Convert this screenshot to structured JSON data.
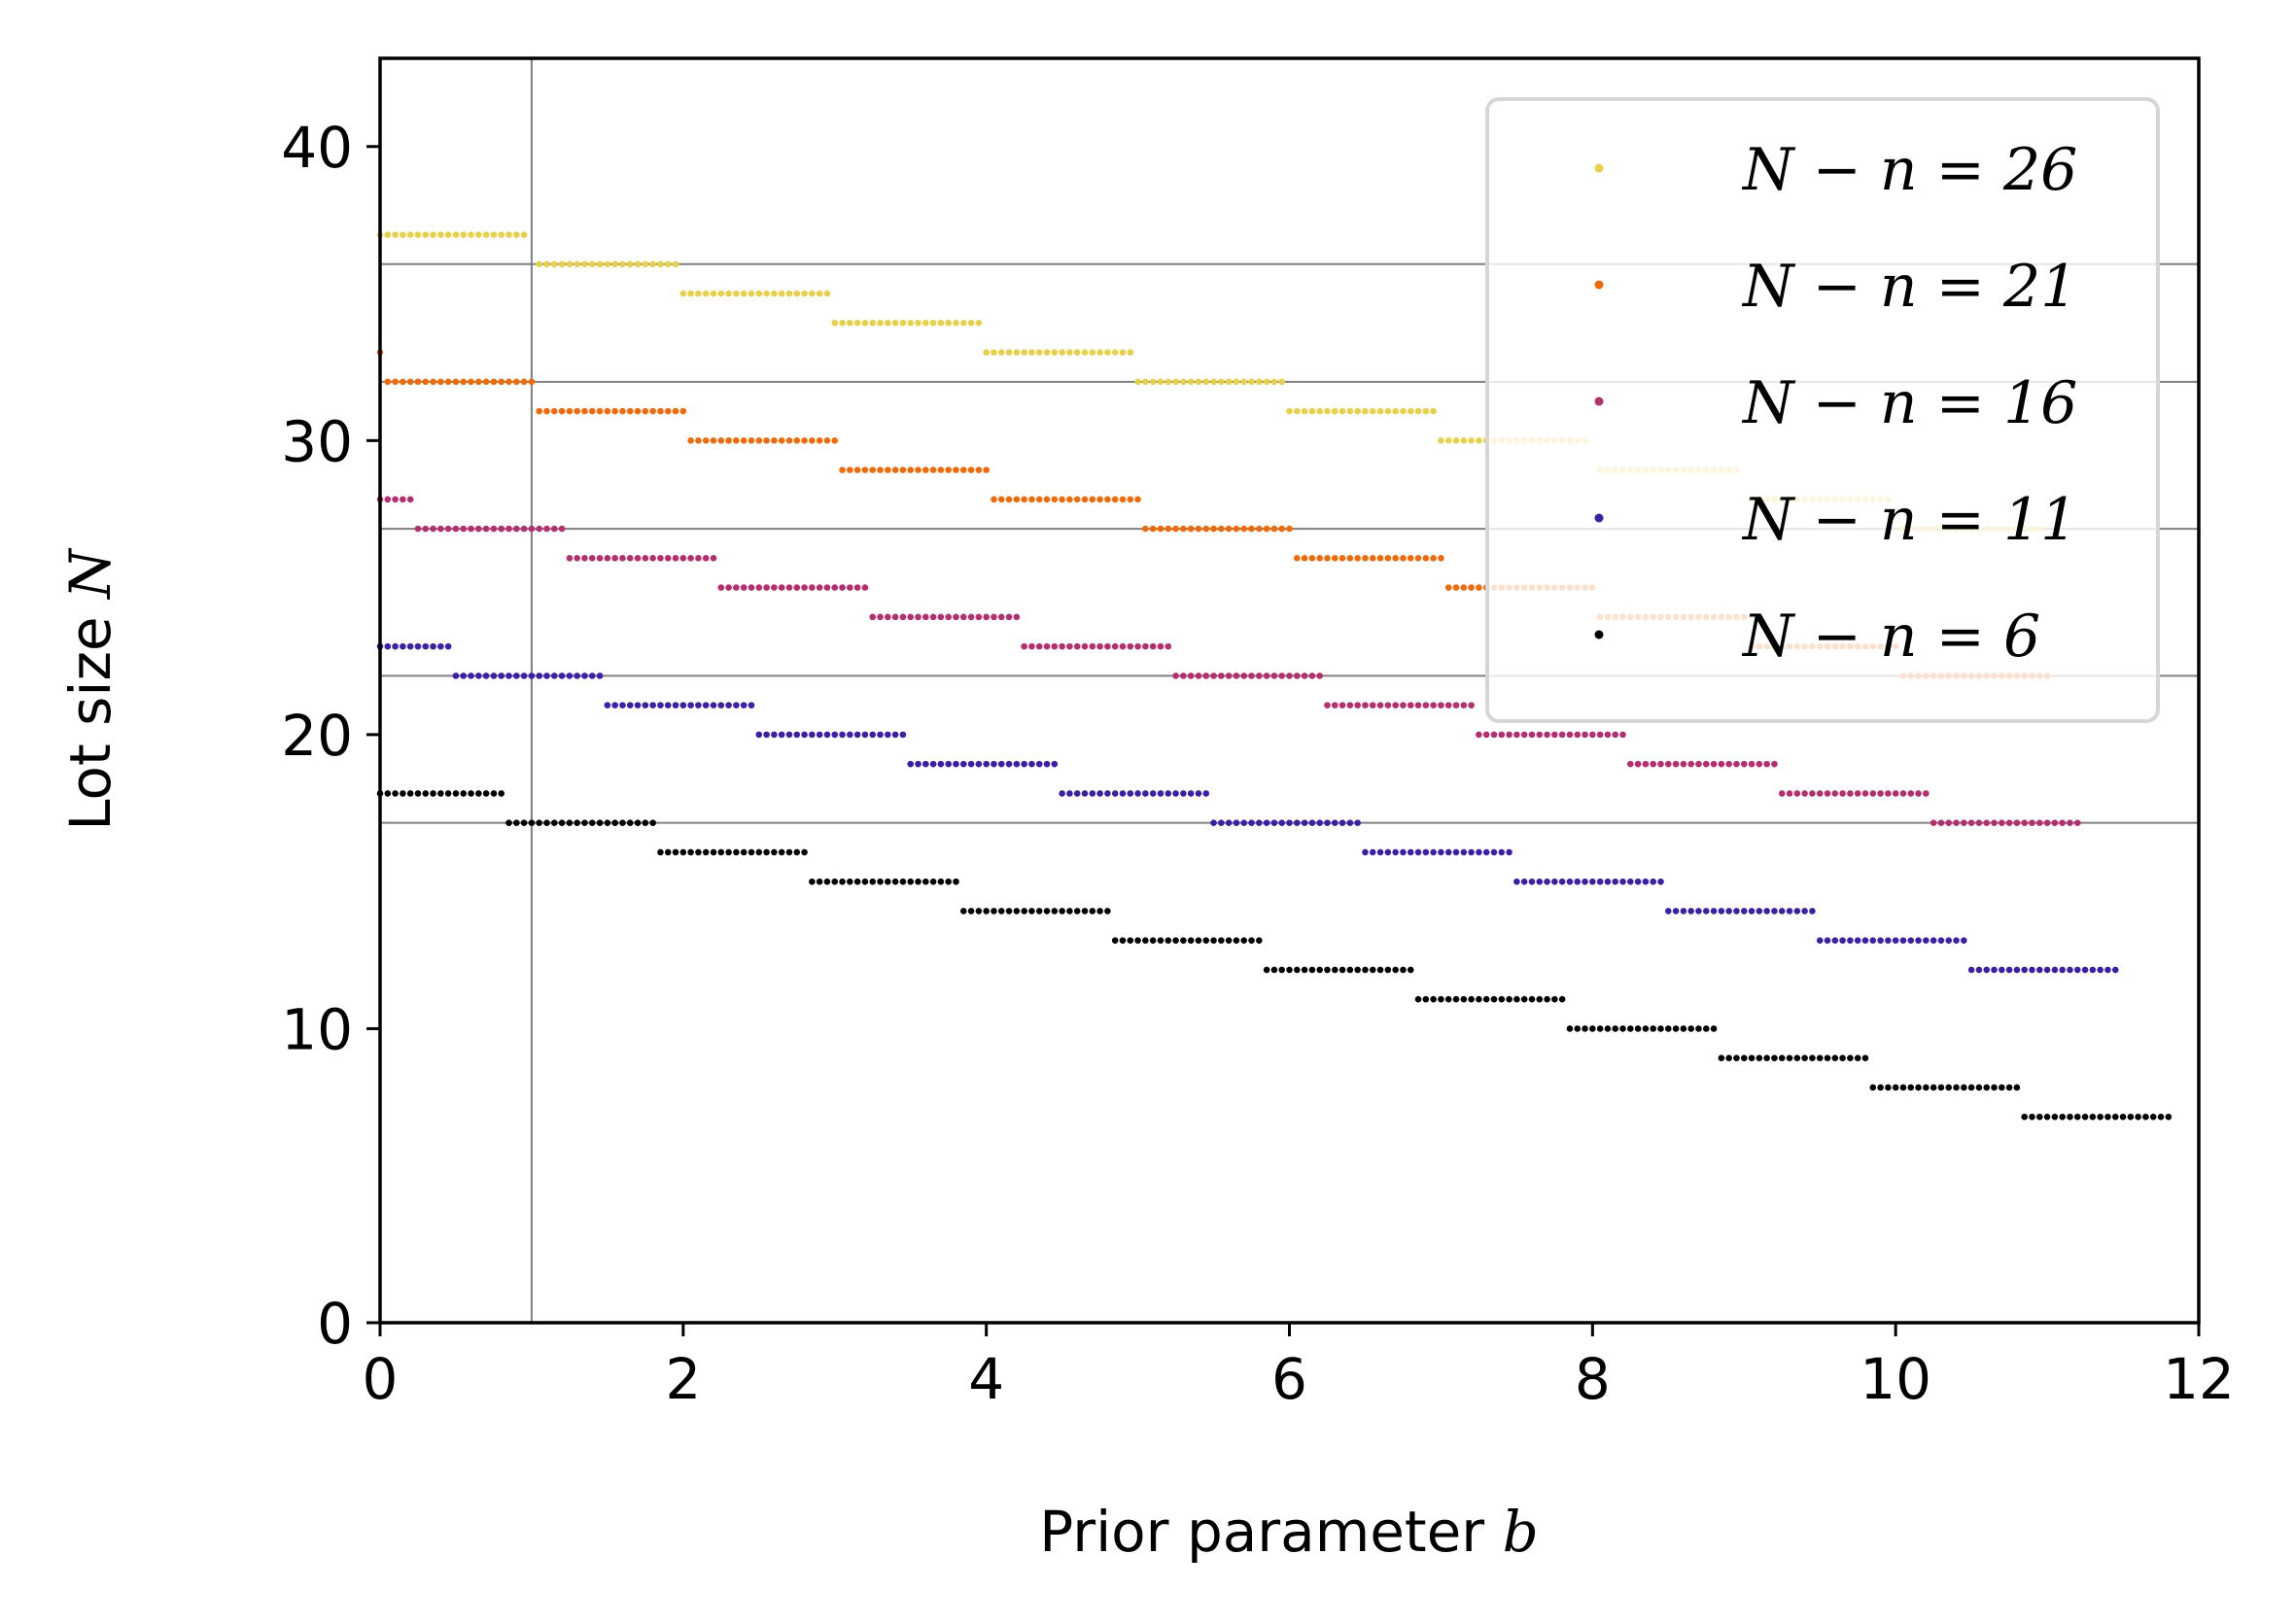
{
  "chart_data": {
    "type": "scatter",
    "title": "",
    "xlabel": {
      "text": "Prior parameter ",
      "math": "b"
    },
    "ylabel": {
      "text": "Lot size ",
      "math": "N"
    },
    "xlim": [
      0,
      12
    ],
    "ylim": [
      0,
      43
    ],
    "xticks": [
      "0",
      "2",
      "4",
      "6",
      "8",
      "10",
      "12"
    ],
    "yticks": [
      "0",
      "10",
      "20",
      "30",
      "40"
    ],
    "grid": {
      "vertical_lines": [
        1
      ],
      "horizontal_lines": [
        17,
        22,
        27,
        32,
        36
      ],
      "color": "#808080"
    },
    "legend": {
      "placement": "top-right",
      "entries": [
        {
          "label": "N − n = 26",
          "color": "#e8d04a"
        },
        {
          "label": "N − n = 21",
          "color": "#f06a0a"
        },
        {
          "label": "N − n = 16",
          "color": "#b32f6e"
        },
        {
          "label": "N − n = 11",
          "color": "#3b1fa5"
        },
        {
          "label": "N − n = 6",
          "color": "#000000"
        }
      ]
    },
    "series": [
      {
        "name": "N − n = 26",
        "color": "#e8d04a",
        "steps": [
          {
            "x0": 0,
            "x1": 0.95,
            "y": 37
          },
          {
            "x0": 1.05,
            "x1": 1.95,
            "y": 36
          },
          {
            "x0": 2.0,
            "x1": 2.95,
            "y": 35
          },
          {
            "x0": 3.0,
            "x1": 3.95,
            "y": 34
          },
          {
            "x0": 4.0,
            "x1": 4.95,
            "y": 33
          },
          {
            "x0": 5.0,
            "x1": 5.95,
            "y": 32
          },
          {
            "x0": 6.0,
            "x1": 6.95,
            "y": 31
          },
          {
            "x0": 7.0,
            "x1": 7.95,
            "y": 30
          },
          {
            "x0": 8.05,
            "x1": 8.95,
            "y": 29
          },
          {
            "x0": 9.05,
            "x1": 9.95,
            "y": 28
          },
          {
            "x0": 10.05,
            "x1": 10.95,
            "y": 27
          }
        ]
      },
      {
        "name": "N − n = 21",
        "color": "#f06a0a",
        "steps": [
          {
            "x0": 0,
            "x1": 0,
            "y": 33
          },
          {
            "x0": 0.05,
            "x1": 1.0,
            "y": 32
          },
          {
            "x0": 1.05,
            "x1": 2.0,
            "y": 31
          },
          {
            "x0": 2.05,
            "x1": 3.0,
            "y": 30
          },
          {
            "x0": 3.05,
            "x1": 4.0,
            "y": 29
          },
          {
            "x0": 4.05,
            "x1": 5.0,
            "y": 28
          },
          {
            "x0": 5.05,
            "x1": 6.0,
            "y": 27
          },
          {
            "x0": 6.05,
            "x1": 7.0,
            "y": 26
          },
          {
            "x0": 7.05,
            "x1": 8.0,
            "y": 25
          },
          {
            "x0": 8.05,
            "x1": 9.0,
            "y": 24
          },
          {
            "x0": 9.05,
            "x1": 10.0,
            "y": 23
          },
          {
            "x0": 10.05,
            "x1": 11.0,
            "y": 22
          }
        ]
      },
      {
        "name": "N − n = 16",
        "color": "#b32f6e",
        "steps": [
          {
            "x0": 0,
            "x1": 0.2,
            "y": 28
          },
          {
            "x0": 0.25,
            "x1": 1.2,
            "y": 27
          },
          {
            "x0": 1.25,
            "x1": 2.2,
            "y": 26
          },
          {
            "x0": 2.25,
            "x1": 3.2,
            "y": 25
          },
          {
            "x0": 3.25,
            "x1": 4.2,
            "y": 24
          },
          {
            "x0": 4.25,
            "x1": 5.2,
            "y": 23
          },
          {
            "x0": 5.25,
            "x1": 6.2,
            "y": 22
          },
          {
            "x0": 6.25,
            "x1": 7.2,
            "y": 21
          },
          {
            "x0": 7.25,
            "x1": 8.2,
            "y": 20
          },
          {
            "x0": 8.25,
            "x1": 9.2,
            "y": 19
          },
          {
            "x0": 9.25,
            "x1": 10.2,
            "y": 18
          },
          {
            "x0": 10.25,
            "x1": 11.2,
            "y": 17
          }
        ]
      },
      {
        "name": "N − n = 11",
        "color": "#3b1fa5",
        "steps": [
          {
            "x0": 0,
            "x1": 0.45,
            "y": 23
          },
          {
            "x0": 0.5,
            "x1": 1.45,
            "y": 22
          },
          {
            "x0": 1.5,
            "x1": 2.45,
            "y": 21
          },
          {
            "x0": 2.5,
            "x1": 3.45,
            "y": 20
          },
          {
            "x0": 3.5,
            "x1": 4.45,
            "y": 19
          },
          {
            "x0": 4.5,
            "x1": 5.45,
            "y": 18
          },
          {
            "x0": 5.5,
            "x1": 6.45,
            "y": 17
          },
          {
            "x0": 6.5,
            "x1": 7.45,
            "y": 16
          },
          {
            "x0": 7.5,
            "x1": 8.45,
            "y": 15
          },
          {
            "x0": 8.5,
            "x1": 9.45,
            "y": 14
          },
          {
            "x0": 9.5,
            "x1": 10.45,
            "y": 13
          },
          {
            "x0": 10.5,
            "x1": 11.45,
            "y": 12
          }
        ]
      },
      {
        "name": "N − n = 6",
        "color": "#000000",
        "steps": [
          {
            "x0": 0,
            "x1": 0.8,
            "y": 18
          },
          {
            "x0": 0.85,
            "x1": 1.8,
            "y": 17
          },
          {
            "x0": 1.85,
            "x1": 2.8,
            "y": 16
          },
          {
            "x0": 2.85,
            "x1": 3.8,
            "y": 15
          },
          {
            "x0": 3.85,
            "x1": 4.8,
            "y": 14
          },
          {
            "x0": 4.85,
            "x1": 5.8,
            "y": 13
          },
          {
            "x0": 5.85,
            "x1": 6.8,
            "y": 12
          },
          {
            "x0": 6.85,
            "x1": 7.8,
            "y": 11
          },
          {
            "x0": 7.85,
            "x1": 8.8,
            "y": 10
          },
          {
            "x0": 8.85,
            "x1": 9.8,
            "y": 9
          },
          {
            "x0": 9.85,
            "x1": 10.8,
            "y": 8
          },
          {
            "x0": 10.85,
            "x1": 11.8,
            "y": 7
          }
        ]
      }
    ]
  }
}
